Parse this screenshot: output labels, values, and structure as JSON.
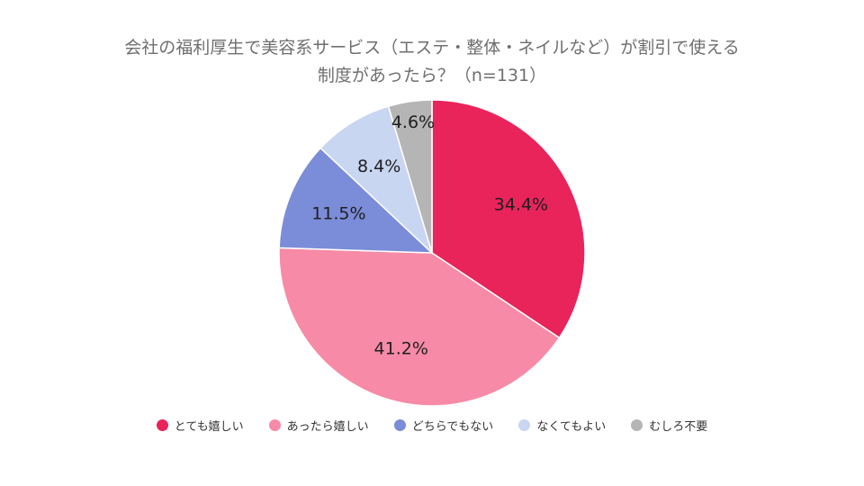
{
  "chart_data": {
    "type": "pie",
    "title_lines": [
      "会社の福利厚生で美容系サービス（エステ・整体・ネイルなど）が割引で使える",
      "制度があったら？（n=131）"
    ],
    "categories": [
      "とても嬉しい",
      "あったら嬉しい",
      "どちらでもない",
      "なくてもよい",
      "むしろ不要"
    ],
    "values": [
      34.4,
      41.2,
      11.5,
      8.4,
      4.6
    ],
    "value_labels": [
      "34.4%",
      "41.2%",
      "11.5%",
      "8.4%",
      "4.6%"
    ],
    "colors": [
      "#e8245a",
      "#f78aa6",
      "#7b8cd8",
      "#c8d6f2",
      "#b5b5b5"
    ],
    "legend_position": "bottom"
  }
}
